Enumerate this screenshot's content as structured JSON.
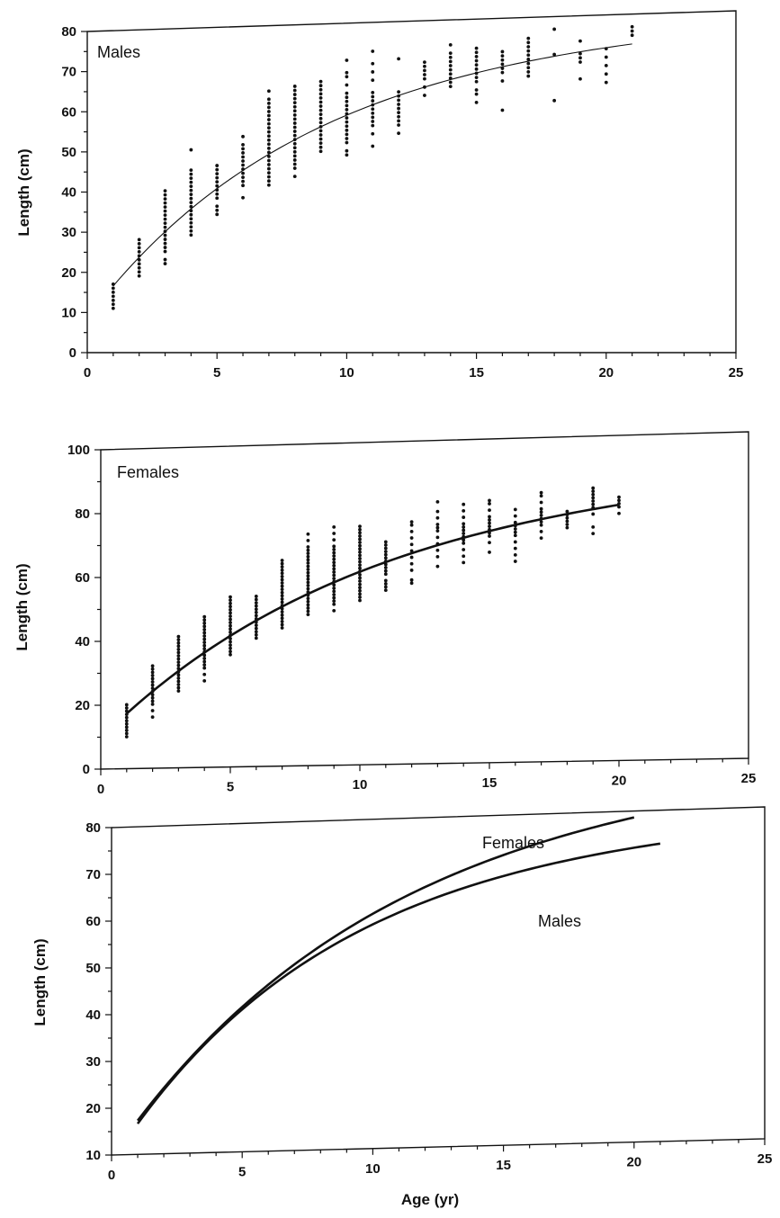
{
  "chart_data": [
    {
      "type": "scatter",
      "panel_label": "Males",
      "ylabel": "Length (cm)",
      "xlabel": "",
      "xlim": [
        0,
        25
      ],
      "ylim": [
        0,
        80
      ],
      "x_ticks": [
        "0",
        "5",
        "10",
        "15",
        "20",
        "25"
      ],
      "y_ticks": [
        "0",
        "10",
        "20",
        "30",
        "40",
        "50",
        "60",
        "70",
        "80"
      ],
      "series": [
        {
          "kind": "points",
          "points": [
            [
              1,
              [
                11,
                12,
                13,
                14,
                15,
                16,
                17
              ]
            ],
            [
              2,
              [
                19,
                20,
                21,
                22,
                23,
                24,
                25,
                26,
                27,
                28
              ]
            ],
            [
              3,
              [
                22,
                23,
                25,
                26,
                27,
                28,
                29,
                30,
                31,
                32,
                33,
                34,
                35,
                36,
                37,
                38,
                39,
                40
              ]
            ],
            [
              4,
              [
                29,
                30,
                31,
                32,
                33,
                34,
                35,
                36,
                37,
                38,
                39,
                40,
                41,
                42,
                43,
                44,
                45,
                50
              ]
            ],
            [
              5,
              [
                34,
                35,
                36,
                38,
                39,
                40,
                41,
                42,
                43,
                44,
                45,
                46
              ]
            ],
            [
              6,
              [
                38,
                41,
                42,
                43,
                44,
                45,
                46,
                47,
                48,
                49,
                50,
                51,
                53
              ]
            ],
            [
              7,
              [
                41,
                42,
                43,
                44,
                45,
                46,
                47,
                48,
                49,
                50,
                51,
                52,
                53,
                54,
                55,
                56,
                57,
                58,
                59,
                60,
                61,
                62,
                64
              ]
            ],
            [
              8,
              [
                43,
                45,
                46,
                47,
                48,
                49,
                50,
                51,
                52,
                53,
                54,
                55,
                56,
                57,
                58,
                59,
                60,
                61,
                62,
                63,
                64,
                65
              ]
            ],
            [
              9,
              [
                49,
                50,
                51,
                52,
                53,
                54,
                55,
                56,
                57,
                58,
                59,
                60,
                61,
                62,
                63,
                64,
                65,
                66
              ]
            ],
            [
              10,
              [
                48,
                49,
                51,
                52,
                53,
                54,
                55,
                56,
                57,
                58,
                59,
                60,
                61,
                62,
                63,
                65,
                67,
                68,
                71
              ]
            ],
            [
              11,
              [
                50,
                53,
                55,
                56,
                57,
                58,
                59,
                60,
                61,
                62,
                63,
                66,
                68,
                70,
                73
              ]
            ],
            [
              12,
              [
                53,
                55,
                56,
                57,
                58,
                59,
                60,
                61,
                62,
                63,
                71
              ]
            ],
            [
              13,
              [
                62,
                64,
                66,
                67,
                68,
                69,
                70
              ]
            ],
            [
              14,
              [
                64,
                65,
                66,
                67,
                68,
                69,
                70,
                71,
                72,
                74
              ]
            ],
            [
              15,
              [
                60,
                62,
                63,
                65,
                66,
                67,
                68,
                69,
                70,
                71,
                72,
                73
              ]
            ],
            [
              16,
              [
                58,
                65,
                67,
                68,
                69,
                70,
                71,
                72
              ]
            ],
            [
              17,
              [
                66,
                67,
                68,
                69,
                70,
                71,
                72,
                73,
                74,
                75
              ]
            ],
            [
              18,
              [
                60,
                71,
                77
              ]
            ],
            [
              19,
              [
                65,
                69,
                70,
                71,
                74
              ]
            ],
            [
              20,
              [
                64,
                66,
                68,
                70,
                72
              ]
            ],
            [
              21,
              [
                75,
                76,
                77
              ]
            ]
          ]
        },
        {
          "kind": "curve",
          "linf": 78.4,
          "k": 0.1214,
          "t0": -0.955,
          "x_range": [
            1,
            21
          ]
        }
      ]
    },
    {
      "type": "scatter",
      "panel_label": "Females",
      "ylabel": "Length (cm)",
      "xlabel": "",
      "xlim": [
        0,
        25
      ],
      "ylim": [
        0,
        100
      ],
      "x_ticks": [
        "0",
        "5",
        "10",
        "15",
        "20",
        "25"
      ],
      "y_ticks": [
        "0",
        "20",
        "40",
        "60",
        "80",
        "100"
      ],
      "series": [
        {
          "kind": "points",
          "points": [
            [
              1,
              [
                10,
                11,
                12,
                13,
                14,
                15,
                16,
                17,
                18,
                19,
                20
              ]
            ],
            [
              2,
              [
                16,
                18,
                20,
                21,
                22,
                23,
                24,
                25,
                26,
                27,
                28,
                29,
                30,
                31,
                32
              ]
            ],
            [
              3,
              [
                24,
                25,
                26,
                27,
                28,
                29,
                30,
                31,
                32,
                33,
                34,
                35,
                36,
                37,
                38,
                39,
                40,
                41
              ]
            ],
            [
              4,
              [
                27,
                29,
                31,
                32,
                33,
                34,
                35,
                36,
                37,
                38,
                39,
                40,
                41,
                42,
                43,
                44,
                45,
                46,
                47
              ]
            ],
            [
              5,
              [
                35,
                36,
                37,
                38,
                39,
                40,
                41,
                42,
                43,
                44,
                45,
                46,
                47,
                48,
                49,
                50,
                51,
                52,
                53
              ]
            ],
            [
              6,
              [
                40,
                41,
                42,
                43,
                44,
                45,
                46,
                47,
                48,
                49,
                50,
                51,
                52,
                53
              ]
            ],
            [
              7,
              [
                43,
                44,
                45,
                46,
                47,
                48,
                49,
                50,
                51,
                52,
                53,
                54,
                55,
                56,
                57,
                58,
                59,
                60,
                61,
                62,
                63,
                64
              ]
            ],
            [
              8,
              [
                47,
                48,
                49,
                50,
                51,
                52,
                53,
                54,
                55,
                56,
                57,
                58,
                59,
                60,
                61,
                62,
                63,
                64,
                65,
                66,
                67,
                68,
                70,
                72
              ]
            ],
            [
              9,
              [
                48,
                50,
                51,
                52,
                53,
                54,
                55,
                56,
                57,
                58,
                59,
                60,
                61,
                62,
                63,
                64,
                65,
                66,
                67,
                68,
                70,
                72,
                74
              ]
            ],
            [
              10,
              [
                51,
                52,
                53,
                54,
                55,
                56,
                57,
                58,
                59,
                60,
                61,
                62,
                63,
                64,
                65,
                66,
                67,
                68,
                69,
                70,
                71,
                72,
                73,
                74
              ]
            ],
            [
              11,
              [
                54,
                55,
                56,
                57,
                59,
                60,
                61,
                62,
                63,
                64,
                65,
                66,
                67,
                68,
                69
              ]
            ],
            [
              12,
              [
                56,
                57,
                60,
                62,
                64,
                66,
                68,
                70,
                72,
                74,
                75
              ]
            ],
            [
              13,
              [
                61,
                64,
                66,
                68,
                70,
                72,
                73,
                74,
                76,
                78,
                81
              ]
            ],
            [
              14,
              [
                62,
                64,
                66,
                68,
                69,
                70,
                71,
                72,
                73,
                74,
                76,
                78,
                80
              ]
            ],
            [
              15,
              [
                65,
                68,
                70,
                71,
                72,
                73,
                74,
                75,
                76,
                78,
                80,
                81
              ]
            ],
            [
              16,
              [
                62,
                64,
                66,
                68,
                70,
                71,
                72,
                73,
                74,
                76,
                78
              ]
            ],
            [
              17,
              [
                69,
                71,
                73,
                74,
                75,
                76,
                77,
                78,
                80,
                82,
                83
              ]
            ],
            [
              18,
              [
                72,
                73,
                74,
                75,
                76,
                77
              ]
            ],
            [
              19,
              [
                70,
                72,
                76,
                78,
                79,
                80,
                81,
                82,
                83,
                84
              ]
            ],
            [
              20,
              [
                76,
                78,
                79,
                80,
                81
              ]
            ]
          ]
        },
        {
          "kind": "curve",
          "linf": 89.8,
          "k": 0.0986,
          "t0": -1.16,
          "x_range": [
            1,
            20
          ]
        }
      ]
    },
    {
      "type": "line",
      "xlabel": "Age (yr)",
      "ylabel": "Length (cm)",
      "xlim": [
        0,
        25
      ],
      "ylim": [
        10,
        80
      ],
      "x_ticks": [
        "0",
        "5",
        "10",
        "15",
        "20",
        "25"
      ],
      "y_ticks": [
        "10",
        "20",
        "30",
        "40",
        "50",
        "60",
        "70",
        "80"
      ],
      "series": [
        {
          "name": "Females",
          "kind": "curve",
          "linf": 89.8,
          "k": 0.0986,
          "t0": -1.16,
          "x_range": [
            1,
            20
          ]
        },
        {
          "name": "Males",
          "kind": "curve",
          "linf": 78.4,
          "k": 0.1214,
          "t0": -0.955,
          "x_range": [
            1,
            21
          ]
        }
      ]
    }
  ]
}
